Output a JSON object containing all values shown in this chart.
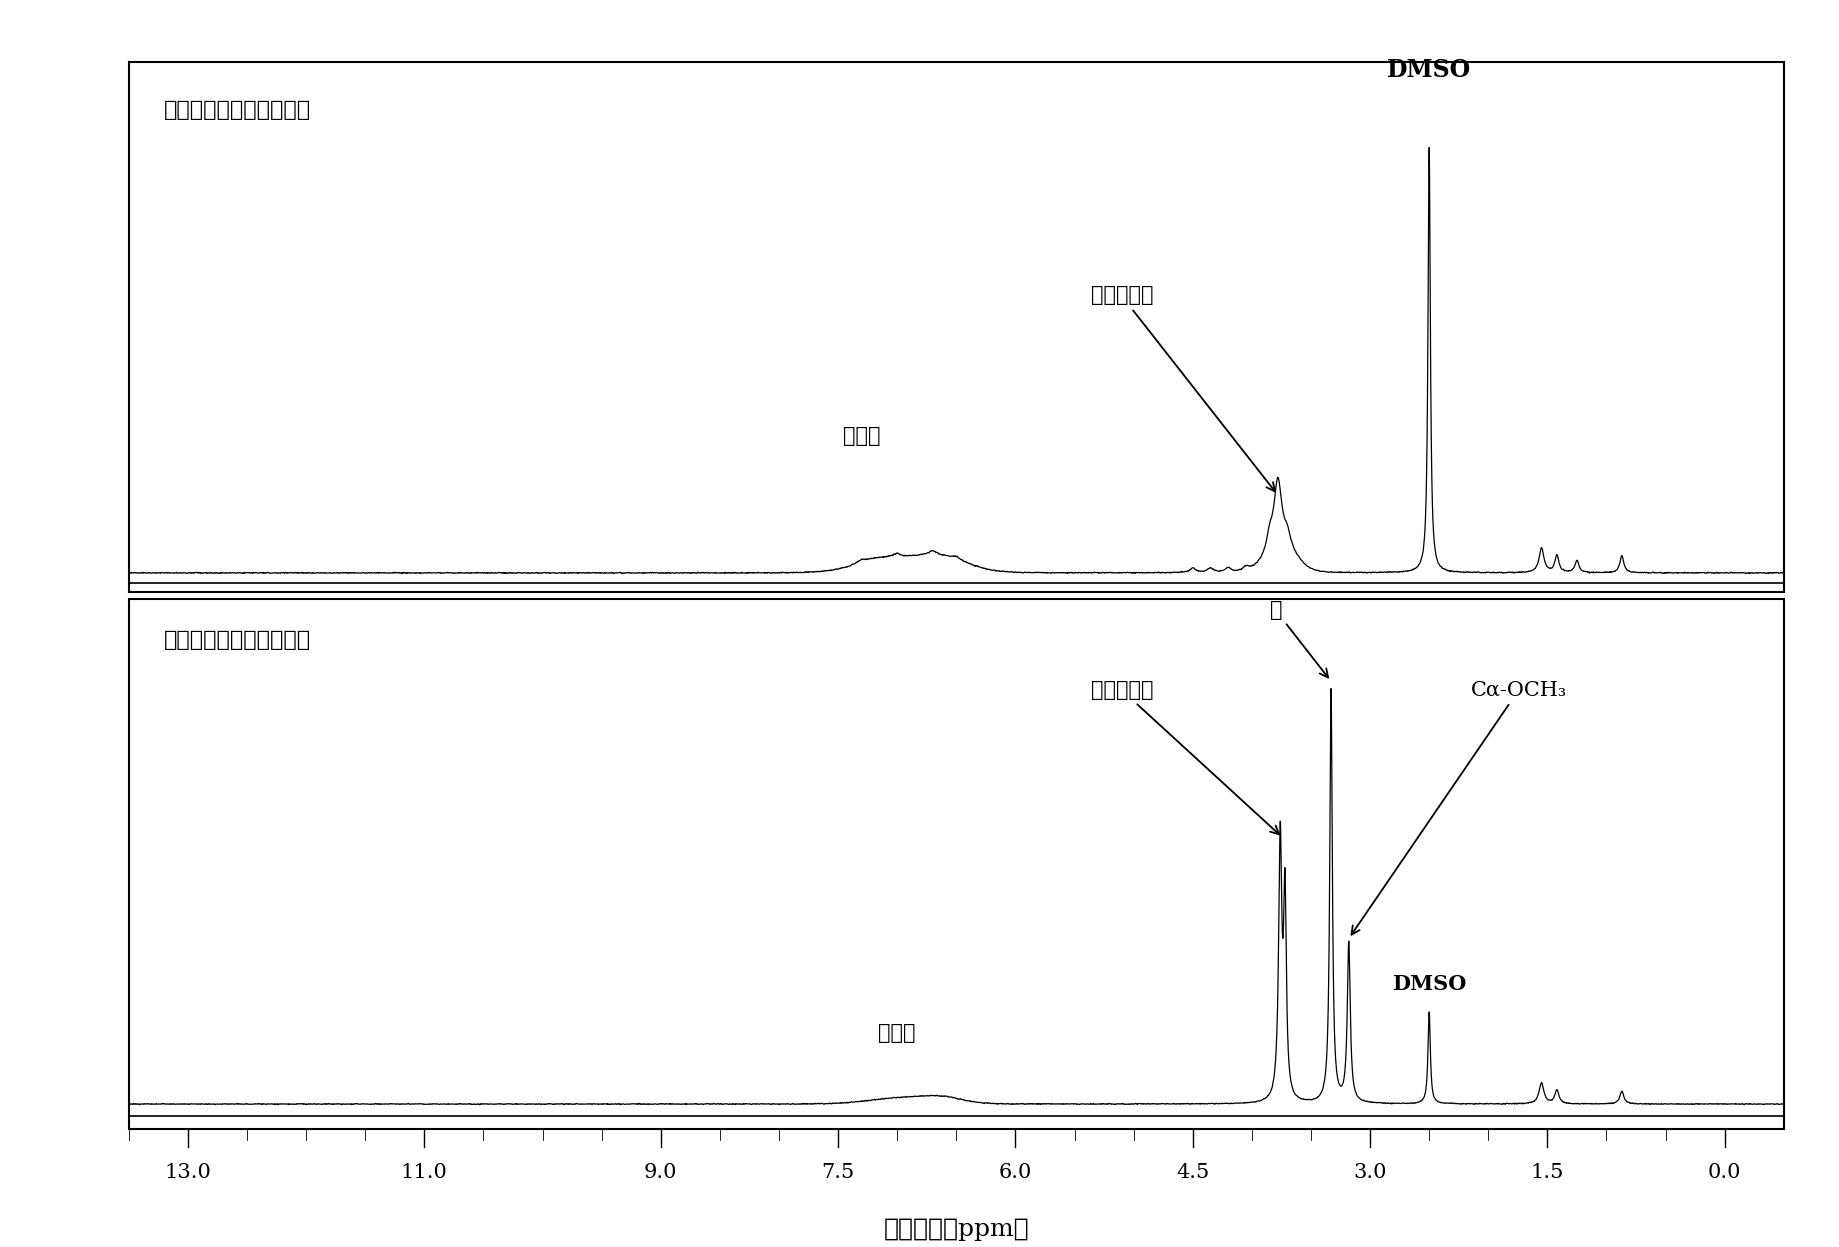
{
  "xlabel": "化学位移（ppm）",
  "xlim_lo": 13.5,
  "xlim_hi": -0.5,
  "xtick_major": [
    13.0,
    11.0,
    9.0,
    7.5,
    6.0,
    4.5,
    3.0,
    1.5,
    0.0
  ],
  "xtick_labels": [
    "13.0",
    "11.0",
    "9.0",
    "7.5",
    "6.0",
    "4.5",
    "3.0",
    "1.5",
    "0.0"
  ],
  "background_color": "#ffffff",
  "panel1_label": "麦草碌木质素（反应前）",
  "panel2_label": "麦草碌木质素（反应后）",
  "line_color": "#000000",
  "ann_top_dmso_label": "DMSO",
  "ann_top_methoxy_label": "芳香甲氧基",
  "ann_top_aroh_label": "芳香氢",
  "ann_bot_water_label": "水",
  "ann_bot_methoxy_label": "芳香甲氧基",
  "ann_bot_caoch3_label": "Cα-OCH₃",
  "ann_bot_dmso_label": "DMSO",
  "ann_bot_aroh_label": "芳香氢"
}
